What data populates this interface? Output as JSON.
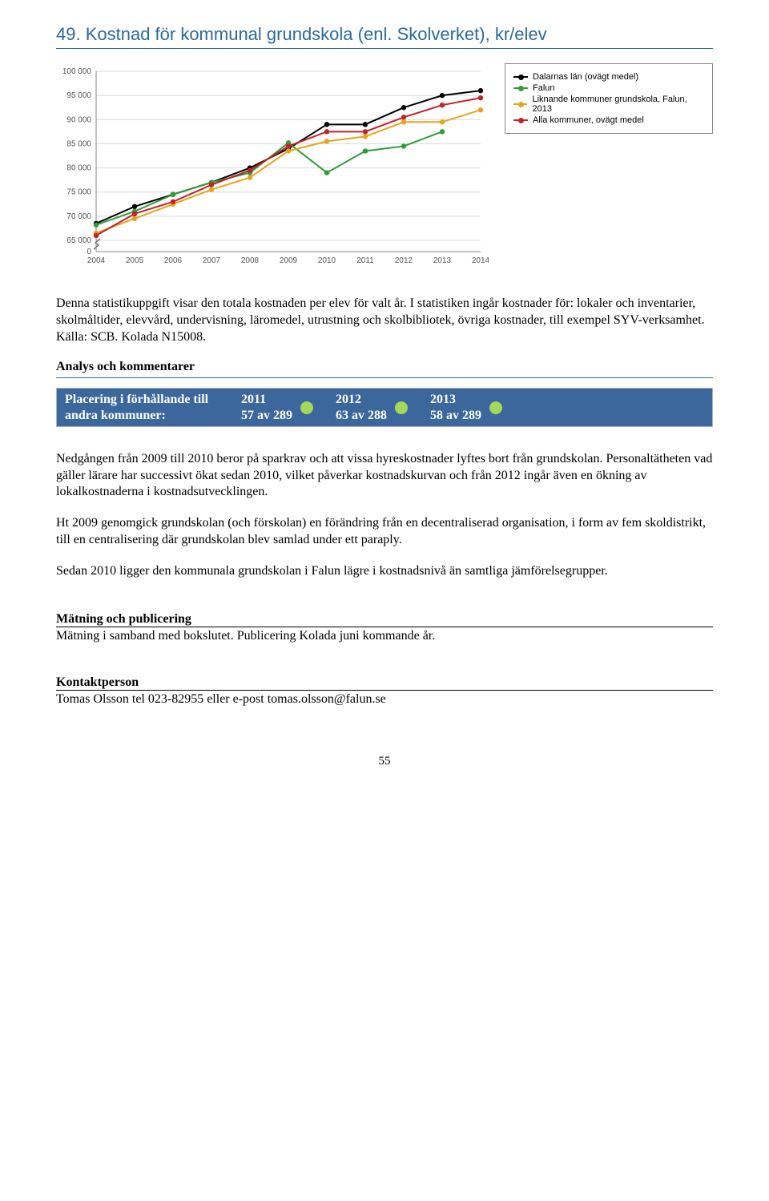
{
  "heading": "49. Kostnad för kommunal grundskola (enl. Skolverket), kr/elev",
  "chart": {
    "type": "line",
    "x_labels": [
      "2004",
      "2005",
      "2006",
      "2007",
      "2008",
      "2009",
      "2010",
      "2011",
      "2012",
      "2013",
      "2014"
    ],
    "ylim": [
      0,
      100000
    ],
    "yticks": [
      0,
      65000,
      70000,
      75000,
      80000,
      85000,
      90000,
      95000,
      100000
    ],
    "ytick_labels": [
      "0",
      "65 000",
      "70 000",
      "75 000",
      "80 000",
      "85 000",
      "90 000",
      "95 000",
      "100 000"
    ],
    "grid_color": "#d9d9d9",
    "axis_color": "#888888",
    "background_color": "#ffffff",
    "label_fontsize": 10,
    "broken_axis": true,
    "series": [
      {
        "name": "Dalarnas län (ovägt medel)",
        "color": "#000000",
        "values": [
          68500,
          72000,
          74500,
          77000,
          80000,
          84000,
          89000,
          89000,
          92500,
          95000,
          96000
        ]
      },
      {
        "name": "Falun",
        "color": "#2e9c3b",
        "values": [
          68200,
          71000,
          74500,
          77000,
          79000,
          85200,
          79000,
          83500,
          84500,
          87500,
          null
        ]
      },
      {
        "name": "Liknande kommuner grundskola, Falun, 2013",
        "color": "#e6a41a",
        "values": [
          66500,
          69500,
          72500,
          75500,
          78000,
          83500,
          85500,
          86500,
          89500,
          89500,
          92000
        ]
      },
      {
        "name": "Alla kommuner, ovägt medel",
        "color": "#c2232a",
        "values": [
          66000,
          70500,
          73000,
          76500,
          79500,
          84500,
          87500,
          87500,
          90500,
          93000,
          94500
        ]
      }
    ]
  },
  "legend": {
    "items": [
      {
        "label": "Dalarnas län (ovägt medel)",
        "color": "#000000"
      },
      {
        "label": "Falun",
        "color": "#2e9c3b"
      },
      {
        "label": "Liknande kommuner grundskola, Falun, 2013",
        "color": "#e6a41a"
      },
      {
        "label": "Alla kommuner, ovägt medel",
        "color": "#c2232a"
      }
    ]
  },
  "intro_text": "Denna statistikuppgift visar den totala kostnaden per elev för valt år. I statistiken ingår kostnader för: lokaler och inventarier, skolmåltider, elevvård, undervisning, läromedel, utrustning och skolbibliotek, övriga kostnader, till exempel SYV-verksamhet. Källa: SCB. Kolada N15008.",
  "analys_title": "Analys och kommentarer",
  "placering": {
    "label_line1": "Placering i förhållande till",
    "label_line2": "andra kommuner:",
    "cols": [
      {
        "year": "2011",
        "rank": "57 av 289",
        "dot_color": "#a3d85b"
      },
      {
        "year": "2012",
        "rank": "63 av 288",
        "dot_color": "#a3d85b"
      },
      {
        "year": "2013",
        "rank": "58 av 289",
        "dot_color": "#a3d85b"
      }
    ],
    "bar_bg": "#3c679c"
  },
  "body_paragraphs": [
    "Nedgången från 2009 till 2010 beror på sparkrav och att vissa hyreskostnader lyftes bort från grundskolan. Personaltätheten vad gäller lärare har successivt ökat sedan 2010, vilket påverkar kostnadskurvan och från 2012 ingår även en ökning av lokalkostnaderna i kostnadsutvecklingen.",
    "Ht 2009 genomgick grundskolan (och förskolan) en förändring från en decentraliserad organisation, i form av fem skoldistrikt, till en centralisering där grundskolan blev samlad under ett paraply.",
    "Sedan 2010 ligger den kommunala grundskolan i Falun lägre i kostnadsnivå än samtliga jämförelsegrupper."
  ],
  "matning": {
    "title": "Mätning och publicering",
    "text": "Mätning i samband med bokslutet. Publicering Kolada juni kommande år."
  },
  "kontakt": {
    "title": "Kontaktperson",
    "text": "Tomas Olsson tel 023-82955 eller e-post tomas.olsson@falun.se"
  },
  "page_number": "55"
}
